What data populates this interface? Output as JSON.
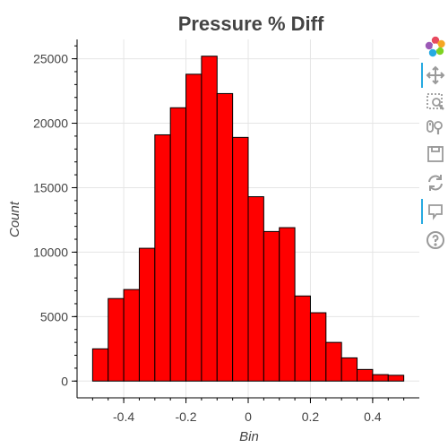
{
  "chart_data": {
    "type": "bar",
    "title": "Pressure % Diff",
    "xlabel": "Bin",
    "ylabel": "Count",
    "bin_width": 0.05,
    "x": [
      -0.475,
      -0.425,
      -0.375,
      -0.325,
      -0.275,
      -0.225,
      -0.175,
      -0.125,
      -0.075,
      -0.025,
      0.025,
      0.075,
      0.125,
      0.175,
      0.225,
      0.275,
      0.325,
      0.375,
      0.425,
      0.475
    ],
    "values": [
      2500,
      6400,
      7100,
      10300,
      19100,
      21200,
      23800,
      25200,
      22300,
      18900,
      14300,
      11600,
      11900,
      6600,
      5300,
      3000,
      1800,
      900,
      500,
      450
    ],
    "xlim": [
      -0.55,
      0.55
    ],
    "ylim": [
      -1300,
      26500
    ],
    "x_ticks": [
      -0.4,
      -0.2,
      0,
      0.2,
      0.4
    ],
    "x_tick_labels": [
      "-0.4",
      "-0.2",
      "0",
      "0.2",
      "0.4"
    ],
    "y_ticks": [
      0,
      5000,
      10000,
      15000,
      20000,
      25000
    ],
    "y_tick_labels": [
      "0",
      "5000",
      "10000",
      "15000",
      "20000",
      "25000"
    ],
    "grid": true,
    "bar_color": "#ff0000",
    "bar_edge_color": "#000000"
  },
  "toolbar": {
    "tools": [
      {
        "name": "bokeh-logo-icon",
        "active": false
      },
      {
        "name": "pan-tool-icon",
        "active": true
      },
      {
        "name": "box-zoom-tool-icon",
        "active": false
      },
      {
        "name": "wheel-zoom-tool-icon",
        "active": false
      },
      {
        "name": "save-tool-icon",
        "active": false
      },
      {
        "name": "reset-tool-icon",
        "active": false
      },
      {
        "name": "hover-tool-icon",
        "active": true
      },
      {
        "name": "help-tool-icon",
        "active": false
      }
    ],
    "active_color": "#26aae1"
  }
}
